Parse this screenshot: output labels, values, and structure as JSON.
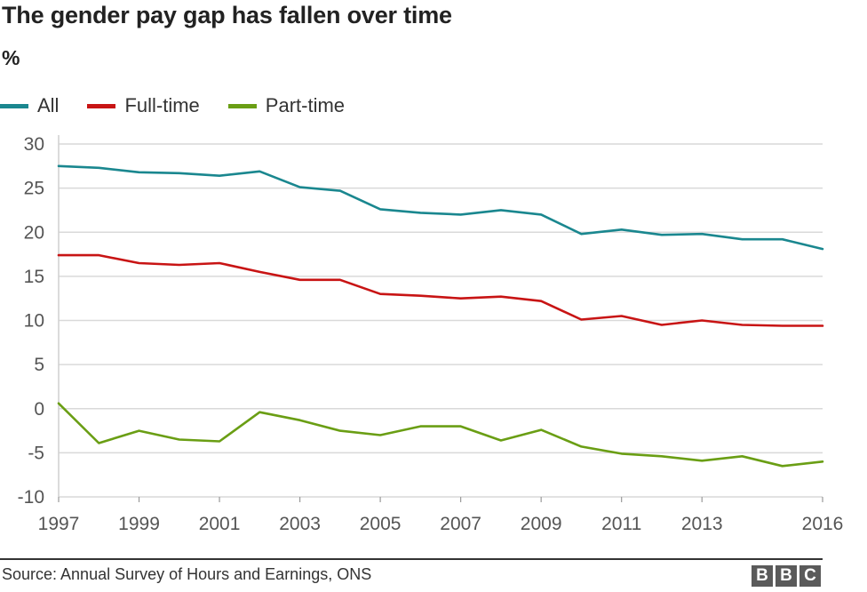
{
  "header": {
    "title": "The gender pay gap has fallen over time",
    "subtitle": "%"
  },
  "legend": [
    {
      "name": "All",
      "color": "#1a878f"
    },
    {
      "name": "Full-time",
      "color": "#c81414"
    },
    {
      "name": "Part-time",
      "color": "#6a9e14"
    }
  ],
  "footer": {
    "source": "Source: Annual Survey of Hours and Earnings, ONS",
    "logo_letters": [
      "B",
      "B",
      "C"
    ]
  },
  "chart_data": {
    "type": "line",
    "title": "The gender pay gap has fallen over time",
    "ylabel": "%",
    "xlabel": "",
    "xlim": [
      1997,
      2016
    ],
    "ylim": [
      -10,
      30
    ],
    "yticks": [
      30,
      25,
      20,
      15,
      10,
      5,
      0,
      -5,
      -10
    ],
    "xticks": [
      1997,
      1999,
      2001,
      2003,
      2005,
      2007,
      2009,
      2011,
      2013,
      2016
    ],
    "grid": true,
    "legend_position": "top-left",
    "x": [
      1997,
      1998,
      1999,
      2000,
      2001,
      2002,
      2003,
      2004,
      2005,
      2006,
      2007,
      2008,
      2009,
      2010,
      2011,
      2012,
      2013,
      2014,
      2015,
      2016
    ],
    "series": [
      {
        "name": "All",
        "color": "#1a878f",
        "values": [
          27.5,
          27.3,
          26.8,
          26.7,
          26.4,
          26.9,
          25.1,
          24.7,
          22.6,
          22.2,
          22.0,
          22.5,
          22.0,
          19.8,
          20.3,
          19.7,
          19.8,
          19.2,
          19.2,
          18.1
        ]
      },
      {
        "name": "Full-time",
        "color": "#c81414",
        "values": [
          17.4,
          17.4,
          16.5,
          16.3,
          16.5,
          15.5,
          14.6,
          14.6,
          13.0,
          12.8,
          12.5,
          12.7,
          12.2,
          10.1,
          10.5,
          9.5,
          10.0,
          9.5,
          9.4,
          9.4
        ]
      },
      {
        "name": "Part-time",
        "color": "#6a9e14",
        "values": [
          0.6,
          -3.9,
          -2.5,
          -3.5,
          -3.7,
          -0.4,
          -1.3,
          -2.5,
          -3.0,
          -2.0,
          -2.0,
          -3.6,
          -2.4,
          -4.3,
          -5.1,
          -5.4,
          -5.9,
          -5.4,
          -6.5,
          -6.0
        ]
      }
    ]
  }
}
